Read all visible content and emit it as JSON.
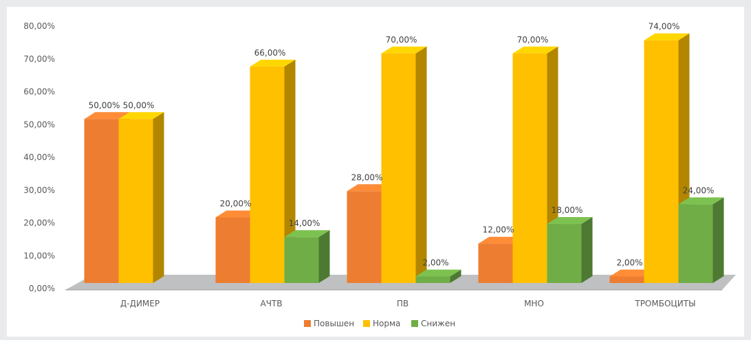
{
  "chart_data": {
    "type": "bar",
    "variant": "3d-clustered-column",
    "categories": [
      "Д-ДИМЕР",
      "АЧТВ",
      "ПВ",
      "МНО",
      "ТРОМБОЦИТЫ"
    ],
    "series": [
      {
        "name": "Повышен",
        "color": "#ed7d31",
        "values": [
          50,
          20,
          28,
          12,
          2
        ],
        "labels": [
          "50,00%",
          "20,00%",
          "28,00%",
          "12,00%",
          "2,00%"
        ]
      },
      {
        "name": "Норма",
        "color": "#ffc000",
        "values": [
          50,
          66,
          70,
          70,
          74
        ],
        "labels": [
          "50,00%",
          "66,00%",
          "70,00%",
          "70,00%",
          "74,00%"
        ]
      },
      {
        "name": "Снижен",
        "color": "#70ad47",
        "values": [
          null,
          14,
          2,
          18,
          24
        ],
        "labels": [
          "",
          "14,00%",
          "2,00%",
          "18,00%",
          "24,00%"
        ]
      }
    ],
    "yticks": [
      "0,00%",
      "10,00%",
      "20,00%",
      "30,00%",
      "40,00%",
      "50,00%",
      "60,00%",
      "70,00%",
      "80,00%"
    ],
    "ylim": [
      0,
      80
    ],
    "title": "",
    "xlabel": "",
    "ylabel": "",
    "legend_position": "bottom",
    "grid": false
  }
}
